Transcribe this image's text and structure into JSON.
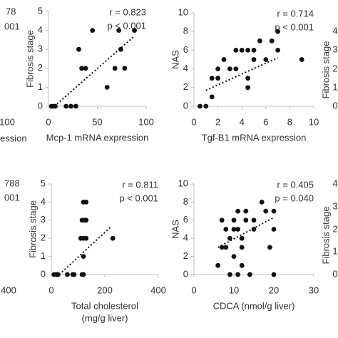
{
  "chart_data": [
    {
      "type": "scatter",
      "stats": [
        "r = 0.823",
        "p < 0.001"
      ],
      "xlabel": [
        "Mcp-1 mRNA expression"
      ],
      "ylabel": "Fibrosis stage",
      "xlim": [
        0,
        100
      ],
      "xticks": [
        0,
        50,
        100
      ],
      "ylim": [
        0,
        5
      ],
      "yticks": [
        0,
        1,
        2,
        3,
        4,
        5
      ],
      "color": "#111111",
      "x": [
        3,
        5,
        7,
        18,
        23,
        28,
        31,
        34,
        38,
        45,
        60,
        72,
        74,
        68,
        78,
        88
      ],
      "y": [
        0,
        0,
        0,
        0,
        0,
        0,
        3,
        2,
        2,
        4,
        1,
        4,
        3,
        2,
        2,
        4
      ],
      "trendline": {
        "x": [
          6,
          88
        ],
        "y": [
          0,
          3.7
        ]
      }
    },
    {
      "type": "scatter",
      "stats": [
        "r = 0.714",
        "p < 0.001"
      ],
      "xlabel": [
        "Tgf-B1 mRNA expression"
      ],
      "ylabel": "NAS",
      "xlim": [
        0,
        10
      ],
      "xticks": [
        0,
        2,
        4,
        6,
        8,
        10
      ],
      "ylim": [
        0,
        10
      ],
      "yticks": [
        0,
        2,
        4,
        6,
        8,
        10
      ],
      "color": "#111111",
      "x": [
        0.5,
        1,
        1.5,
        1.5,
        2,
        2,
        2.5,
        3,
        3.5,
        3.5,
        4,
        4.5,
        4.5,
        4.5,
        5,
        5,
        5.5,
        6,
        6.5,
        7,
        7,
        9
      ],
      "y": [
        0,
        0,
        1,
        3,
        3,
        4,
        5,
        4,
        4,
        6,
        6,
        3,
        2,
        6,
        5,
        6,
        7,
        5,
        7,
        8,
        6,
        5
      ],
      "trendline": {
        "x": [
          1,
          7
        ],
        "y": [
          1.7,
          5.2
        ]
      }
    },
    {
      "type": "scatter",
      "stats": [
        "r = 0.811",
        "p < 0.001"
      ],
      "xlabel": [
        "Total cholesterol",
        "(mg/g liver)"
      ],
      "ylabel": "Fibrosis stage",
      "xlim": [
        0,
        400
      ],
      "xticks": [
        0,
        200,
        400
      ],
      "ylim": [
        0,
        5
      ],
      "yticks": [
        0,
        1,
        2,
        3,
        4,
        5
      ],
      "color": "#111111",
      "x": [
        10,
        20,
        25,
        60,
        80,
        85,
        115,
        120,
        120,
        110,
        120,
        130,
        230,
        115,
        125,
        130,
        120,
        130
      ],
      "y": [
        0,
        0,
        0,
        0,
        0,
        0,
        0,
        0,
        1,
        2,
        2,
        2,
        2,
        3,
        3,
        3,
        4,
        4
      ],
      "trendline": {
        "x": [
          30,
          220
        ],
        "y": [
          0,
          2.6
        ]
      }
    },
    {
      "type": "scatter",
      "stats": [
        "r = 0.405",
        "p = 0.040"
      ],
      "xlabel": [
        "CDCA (nmol/g liver)"
      ],
      "ylabel": "NAS",
      "xlim": [
        0,
        30
      ],
      "xticks": [
        0,
        10,
        20,
        30
      ],
      "ylim": [
        0,
        10
      ],
      "yticks": [
        0,
        2,
        4,
        6,
        8,
        10
      ],
      "color": "#111111",
      "x": [
        6,
        7,
        7,
        8,
        8,
        9,
        9,
        10,
        10,
        10,
        11,
        11,
        11,
        12,
        12,
        12,
        13,
        13,
        14,
        15,
        15,
        17,
        18,
        19,
        20,
        20,
        20
      ],
      "y": [
        1,
        6,
        3,
        3,
        5,
        4,
        0,
        5,
        2,
        6,
        7,
        5,
        0,
        4,
        3,
        1,
        6,
        7,
        0,
        5,
        6,
        8,
        7,
        3,
        7,
        5,
        0
      ],
      "trendline": {
        "x": [
          6,
          20
        ],
        "y": [
          3,
          6.3
        ]
      }
    }
  ],
  "fragments": [
    "78",
    "001",
    "100",
    "ession",
    "788",
    "001",
    "400",
    "Fibrosis stage",
    "4",
    "3",
    "2",
    "1",
    "0",
    "Fibrosis stage",
    "4",
    "3",
    "2",
    "1",
    "0"
  ]
}
